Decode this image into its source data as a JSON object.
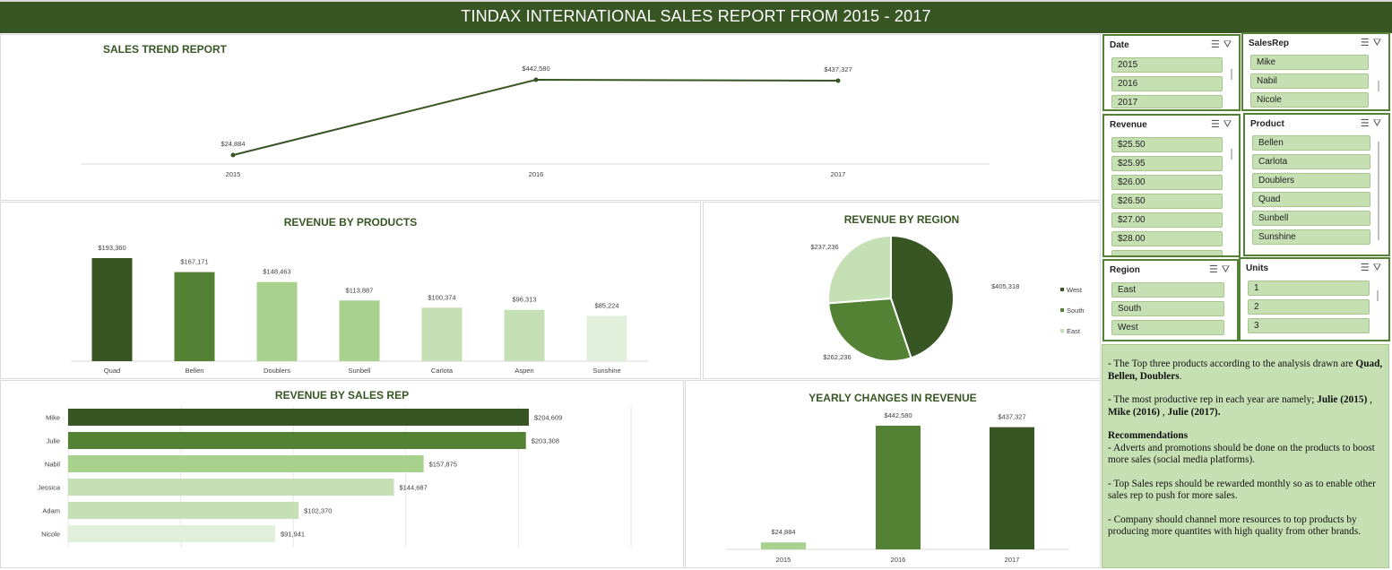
{
  "title": "TINDAX INTERNATIONAL SALES REPORT FROM 2015 - 2017",
  "colors": {
    "dark": "#375623",
    "mid": "#548235",
    "light": "#a9d18e",
    "lighter": "#c5e0b4",
    "lightest": "#e2efda",
    "accent_text": "#375623"
  },
  "charts": {
    "trend": {
      "title": "SALES TREND REPORT"
    },
    "products": {
      "title": "REVENUE BY PRODUCTS"
    },
    "region": {
      "title": "REVENUE BY REGION"
    },
    "salesrep": {
      "title": "REVENUE BY SALES REP"
    },
    "yearly": {
      "title": "YEARLY CHANGES IN REVENUE"
    }
  },
  "chart_data": [
    {
      "id": "trend",
      "type": "line",
      "title": "SALES TREND REPORT",
      "x": [
        "2015",
        "2016",
        "2017"
      ],
      "values": [
        24884,
        442580,
        437327
      ],
      "labels": [
        "$24,884",
        "$442,580",
        "$437,327"
      ]
    },
    {
      "id": "products",
      "type": "bar",
      "title": "REVENUE BY PRODUCTS",
      "categories": [
        "Quad",
        "Bellen",
        "Doublers",
        "Sunbell",
        "Carlota",
        "Aspen",
        "Sunshine"
      ],
      "values": [
        193360,
        167171,
        148463,
        113887,
        100374,
        96313,
        85224
      ],
      "labels": [
        "$193,360",
        "$167,171",
        "$148,463",
        "$113,887",
        "$100,374",
        "$96,313",
        "$85,224"
      ],
      "colors": [
        "#375623",
        "#548235",
        "#a9d18e",
        "#a9d18e",
        "#c5e0b4",
        "#c5e0b4",
        "#e2efda"
      ]
    },
    {
      "id": "region",
      "type": "pie",
      "title": "REVENUE BY REGION",
      "categories": [
        "West",
        "South",
        "East"
      ],
      "values": [
        405318,
        262236,
        237236
      ],
      "labels": [
        "$405,318",
        "$262,236",
        "$237,236"
      ],
      "colors": [
        "#375623",
        "#548235",
        "#c5e0b4"
      ],
      "legend": "right"
    },
    {
      "id": "salesrep",
      "type": "bar",
      "orientation": "horizontal",
      "title": "REVENUE BY SALES REP",
      "categories": [
        "Mike",
        "Julie",
        "Nabil",
        "Jessica",
        "Adam",
        "Nicole"
      ],
      "values": [
        204609,
        203308,
        157875,
        144687,
        102370,
        91941
      ],
      "labels": [
        "$204,609",
        "$203,308",
        "$157,875",
        "$144,687",
        "$102,370",
        "$91,941"
      ],
      "colors": [
        "#375623",
        "#548235",
        "#a9d18e",
        "#c5e0b4",
        "#c5e0b4",
        "#e2efda"
      ],
      "xlim": [
        0,
        250000
      ],
      "grid": true
    },
    {
      "id": "yearly",
      "type": "bar",
      "title": "YEARLY CHANGES IN REVENUE",
      "categories": [
        "2015",
        "2016",
        "2017"
      ],
      "values": [
        24884,
        442580,
        437327
      ],
      "labels": [
        "$24,884",
        "$442,580",
        "$437,327"
      ],
      "colors": [
        "#a9d18e",
        "#548235",
        "#375623"
      ]
    }
  ],
  "slicers": {
    "date": {
      "header": "Date",
      "items": [
        "2015",
        "2016",
        "2017"
      ]
    },
    "salesrep": {
      "header": "SalesRep",
      "items": [
        "Mike",
        "Nabil",
        "Nicole"
      ]
    },
    "revenue": {
      "header": "Revenue",
      "items": [
        "$25.50",
        "$25.95",
        "$26.00",
        "$26.50",
        "$27.00",
        "$28.00"
      ]
    },
    "product": {
      "header": "Product",
      "items": [
        "Bellen",
        "Carlota",
        "Doublers",
        "Quad",
        "Sunbell",
        "Sunshine"
      ]
    },
    "region": {
      "header": "Region",
      "items": [
        "East",
        "South",
        "West"
      ]
    },
    "units": {
      "header": "Units",
      "items": [
        "1",
        "2",
        "3"
      ]
    },
    "icons": {
      "multiselect": "multi-select-icon",
      "clear": "clear-filter-icon"
    }
  },
  "notes": {
    "p1_pre": "- The Top three products according to the analysis drawn are ",
    "p1_bold": "Quad, Bellen, Doublers",
    "p1_post": ".",
    "p2_pre": "- The most productive rep in each year are namely; ",
    "p2_bold1": "Julie (2015)",
    "p2_mid1": " , ",
    "p2_bold2": "Mike (2016)",
    "p2_mid2": " , ",
    "p2_bold3": "Julie (2017).",
    "rec_title": "Recommendations",
    "rec1": "- Adverts and promotions should be done on the products to boost more sales (social media platforms).",
    "rec2": "- Top Sales reps should be rewarded monthly so as to enable other sales rep to push for more sales.",
    "rec3": "- Company should channel more resources to top products by producing more quantites with high quality from other brands."
  }
}
